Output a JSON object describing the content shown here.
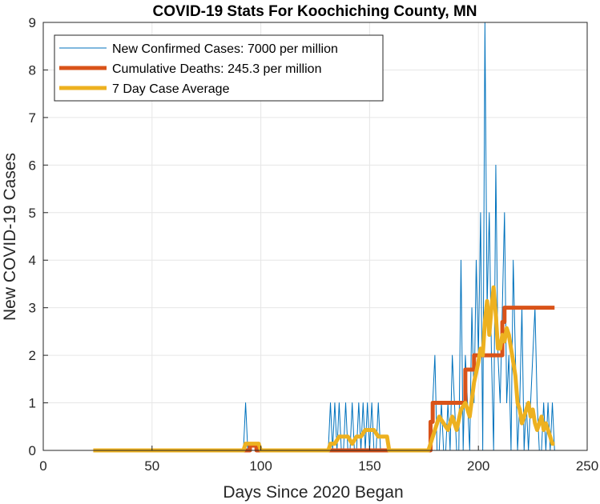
{
  "chart_data": {
    "type": "line",
    "title": "COVID-19 Stats For Koochiching County, MN",
    "xlabel": "Days Since 2020 Began",
    "ylabel": "New COVID-19 Cases",
    "xlim": [
      0,
      250
    ],
    "ylim": [
      0,
      9
    ],
    "xticks": [
      "0",
      "50",
      "100",
      "150",
      "200",
      "250"
    ],
    "yticks": [
      "0",
      "1",
      "2",
      "3",
      "4",
      "5",
      "6",
      "7",
      "8",
      "9"
    ],
    "grid": true,
    "legend_location": "top-left",
    "series": [
      {
        "name": "New Confirmed Cases: 7000 per million",
        "color": "#0072BD",
        "x": [
          23,
          90,
          91,
          92,
          93,
          94,
          95,
          130,
          131,
          132,
          133,
          134,
          135,
          136,
          137,
          138,
          139,
          140,
          141,
          142,
          143,
          144,
          145,
          146,
          147,
          148,
          149,
          150,
          151,
          152,
          153,
          154,
          155,
          156,
          157,
          158,
          159,
          177,
          178,
          179,
          180,
          181,
          182,
          183,
          184,
          185,
          186,
          187,
          188,
          189,
          190,
          191,
          192,
          193,
          194,
          195,
          196,
          197,
          198,
          199,
          200,
          201,
          202,
          203,
          204,
          205,
          206,
          207,
          208,
          209,
          210,
          211,
          212,
          213,
          214,
          215,
          216,
          217,
          218,
          219,
          220,
          221,
          222,
          223,
          224,
          225,
          226,
          227,
          228,
          229,
          230,
          231,
          232,
          233,
          234,
          235
        ],
        "values": [
          0,
          0,
          0,
          0,
          1,
          0,
          0,
          0,
          0,
          1,
          0,
          1,
          0,
          1,
          0,
          0,
          1,
          0,
          0,
          1,
          0,
          0,
          1,
          0,
          1,
          0,
          1,
          0,
          1,
          0,
          0,
          1,
          0,
          0,
          0,
          0,
          0,
          0,
          0,
          1,
          2,
          0,
          0,
          1,
          0,
          0,
          1,
          0,
          2,
          1,
          0,
          0,
          4,
          0,
          2,
          1,
          0,
          3,
          1,
          4,
          2,
          5,
          0,
          9,
          3,
          5,
          2,
          0,
          6,
          2,
          1,
          3,
          5,
          1,
          2,
          0,
          4,
          2,
          0,
          1,
          3,
          0,
          1,
          0,
          1,
          2,
          3,
          1,
          0,
          0,
          1,
          0,
          1,
          0,
          1,
          0
        ]
      },
      {
        "name": "Cumulative Deaths: 245.3 per million",
        "color": "#D95319",
        "x": [
          23,
          95,
          95,
          98,
          98,
          132,
          132,
          178,
          178,
          179,
          179,
          194,
          194,
          198,
          198,
          211,
          211,
          212,
          212,
          235
        ],
        "values": [
          0,
          0,
          0.1,
          0.1,
          0,
          0,
          0,
          0,
          0.6,
          0.6,
          1,
          1,
          1.7,
          1.7,
          2,
          2,
          2.7,
          2.7,
          3,
          3
        ]
      },
      {
        "name": "7 Day Case Average",
        "color": "#EDB120",
        "x": [
          23,
          92,
          93,
          99,
          100,
          131,
          132,
          134,
          136,
          138,
          140,
          142,
          144,
          146,
          148,
          150,
          152,
          154,
          156,
          158,
          159,
          177,
          178,
          180,
          182,
          184,
          186,
          188,
          190,
          192,
          194,
          196,
          198,
          200,
          201,
          202,
          203,
          204,
          205,
          206,
          207,
          208,
          209,
          210,
          211,
          212,
          213,
          214,
          215,
          216,
          217,
          218,
          219,
          220,
          221,
          222,
          223,
          224,
          225,
          226,
          227,
          228,
          229,
          230,
          231,
          232,
          233,
          234,
          235
        ],
        "values": [
          0,
          0,
          0.14,
          0.14,
          0,
          0,
          0.14,
          0.14,
          0.29,
          0.29,
          0.29,
          0.14,
          0.29,
          0.29,
          0.43,
          0.43,
          0.43,
          0.29,
          0.29,
          0.29,
          0,
          0,
          0.14,
          0.43,
          0.71,
          0.57,
          0.43,
          0.71,
          0.43,
          0.86,
          1.0,
          0.71,
          1.43,
          1.86,
          2.14,
          2.0,
          2.71,
          3.14,
          2.43,
          3.0,
          3.43,
          2.86,
          2.14,
          2.14,
          2.43,
          2.29,
          2.57,
          2.43,
          2.14,
          1.86,
          1.57,
          1.0,
          0.86,
          0.57,
          0.71,
          0.86,
          1.0,
          0.71,
          0.86,
          0.57,
          0.43,
          0.57,
          0.71,
          0.43,
          0.57,
          0.43,
          0.29,
          0.14,
          0.14
        ]
      }
    ]
  }
}
